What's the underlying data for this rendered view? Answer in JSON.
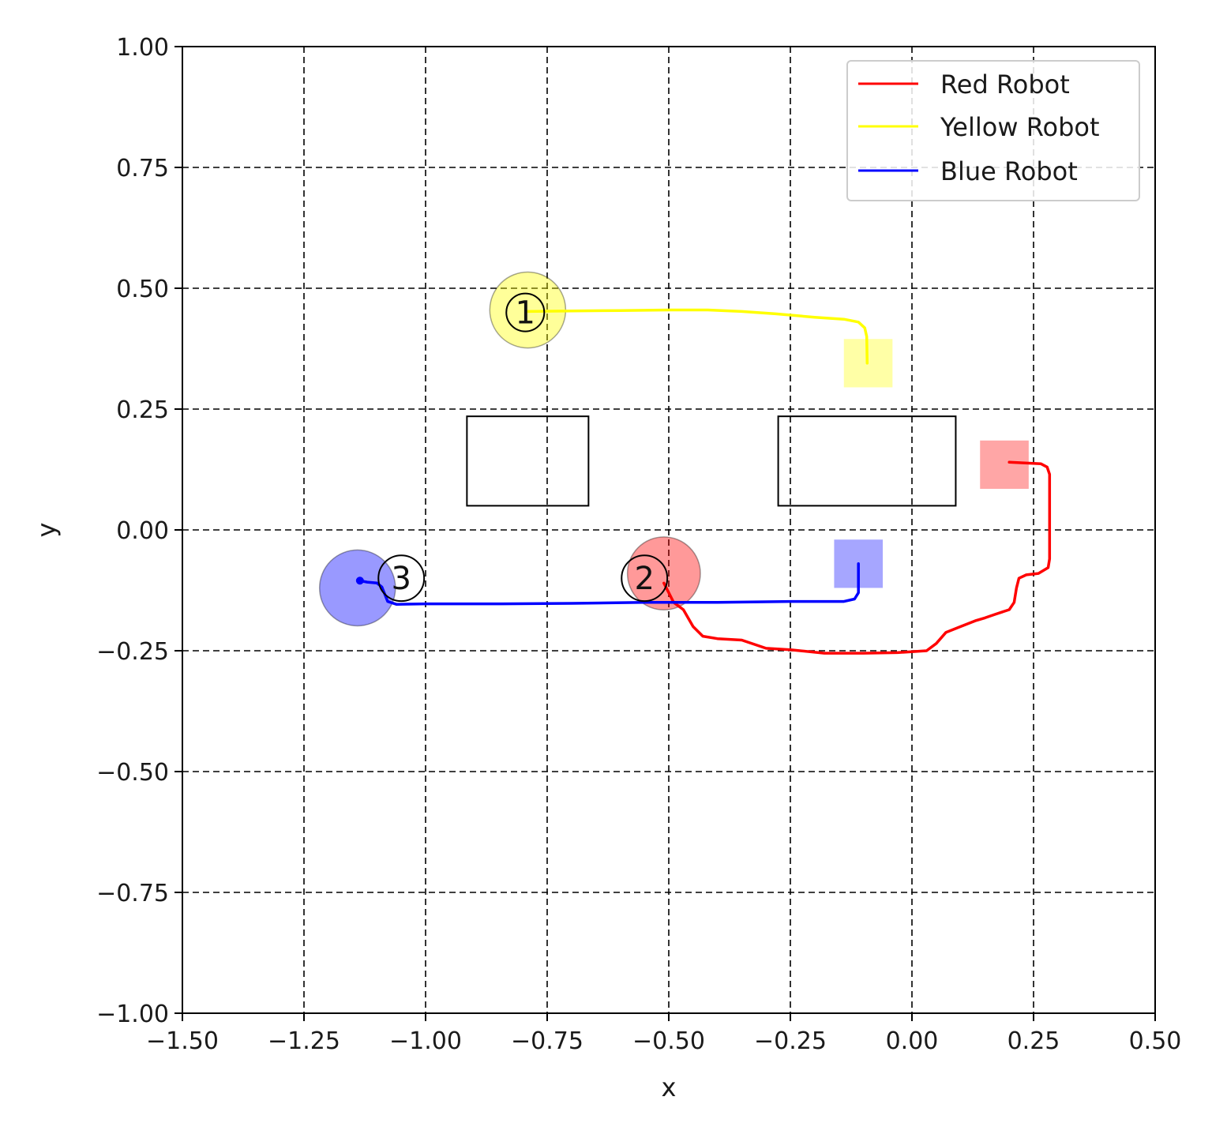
{
  "chart_data": {
    "type": "line",
    "title": "",
    "xlabel": "x",
    "ylabel": "y",
    "xlim": [
      -1.5,
      0.5
    ],
    "ylim": [
      -1.0,
      1.0
    ],
    "xticks": [
      -1.5,
      -1.25,
      -1.0,
      -0.75,
      -0.5,
      -0.25,
      0.0,
      0.25,
      0.5
    ],
    "yticks": [
      -1.0,
      -0.75,
      -0.5,
      -0.25,
      0.0,
      0.25,
      0.5,
      0.75,
      1.0
    ],
    "xtick_labels": [
      "−1.50",
      "−1.25",
      "−1.00",
      "−0.75",
      "−0.50",
      "−0.25",
      "0.00",
      "0.25",
      "0.50"
    ],
    "ytick_labels": [
      "−1.00",
      "−0.75",
      "−0.50",
      "−0.25",
      "0.00",
      "0.25",
      "0.50",
      "0.75",
      "1.00"
    ],
    "grid": true,
    "grid_style": "dashed",
    "legend_position": "top-right",
    "series": [
      {
        "name": "Red Robot",
        "color": "#ff0000",
        "start_marker": {
          "shape": "circle",
          "x": -0.51,
          "y": -0.09,
          "r": 0.075
        },
        "goal_marker": {
          "shape": "square",
          "x": 0.19,
          "y": 0.135,
          "size": 0.1
        },
        "points": [
          [
            -0.51,
            -0.11
          ],
          [
            -0.49,
            -0.15
          ],
          [
            -0.47,
            -0.165
          ],
          [
            -0.45,
            -0.2
          ],
          [
            -0.43,
            -0.22
          ],
          [
            -0.4,
            -0.225
          ],
          [
            -0.35,
            -0.228
          ],
          [
            -0.3,
            -0.245
          ],
          [
            -0.25,
            -0.248
          ],
          [
            -0.18,
            -0.255
          ],
          [
            -0.1,
            -0.255
          ],
          [
            -0.03,
            -0.254
          ],
          [
            0.03,
            -0.25
          ],
          [
            0.05,
            -0.235
          ],
          [
            0.07,
            -0.212
          ],
          [
            0.1,
            -0.2
          ],
          [
            0.13,
            -0.188
          ],
          [
            0.15,
            -0.182
          ],
          [
            0.17,
            -0.175
          ],
          [
            0.2,
            -0.165
          ],
          [
            0.21,
            -0.15
          ],
          [
            0.215,
            -0.12
          ],
          [
            0.22,
            -0.1
          ],
          [
            0.235,
            -0.093
          ],
          [
            0.26,
            -0.09
          ],
          [
            0.28,
            -0.078
          ],
          [
            0.283,
            -0.06
          ],
          [
            0.283,
            0.05
          ],
          [
            0.283,
            0.115
          ],
          [
            0.278,
            0.13
          ],
          [
            0.265,
            0.137
          ],
          [
            0.2,
            0.14
          ]
        ]
      },
      {
        "name": "Yellow Robot",
        "color": "#ffff00",
        "start_marker": {
          "shape": "circle",
          "x": -0.79,
          "y": 0.455,
          "r": 0.078
        },
        "goal_marker": {
          "shape": "square",
          "x": -0.09,
          "y": 0.345,
          "size": 0.1
        },
        "points": [
          [
            -0.79,
            0.452
          ],
          [
            -0.7,
            0.453
          ],
          [
            -0.6,
            0.454
          ],
          [
            -0.5,
            0.455
          ],
          [
            -0.42,
            0.455
          ],
          [
            -0.35,
            0.452
          ],
          [
            -0.28,
            0.447
          ],
          [
            -0.2,
            0.44
          ],
          [
            -0.14,
            0.436
          ],
          [
            -0.11,
            0.43
          ],
          [
            -0.097,
            0.418
          ],
          [
            -0.093,
            0.4
          ],
          [
            -0.092,
            0.345
          ]
        ]
      },
      {
        "name": "Blue Robot",
        "color": "#0000ff",
        "start_marker": {
          "shape": "circle",
          "x": -1.14,
          "y": -0.12,
          "r": 0.078
        },
        "goal_marker": {
          "shape": "square",
          "x": -0.11,
          "y": -0.07,
          "size": 0.1
        },
        "points": [
          [
            -0.11,
            -0.07
          ],
          [
            -0.11,
            -0.13
          ],
          [
            -0.118,
            -0.143
          ],
          [
            -0.14,
            -0.148
          ],
          [
            -0.25,
            -0.148
          ],
          [
            -0.4,
            -0.15
          ],
          [
            -0.55,
            -0.15
          ],
          [
            -0.7,
            -0.152
          ],
          [
            -0.85,
            -0.153
          ],
          [
            -1.0,
            -0.153
          ],
          [
            -1.06,
            -0.154
          ],
          [
            -1.078,
            -0.148
          ],
          [
            -1.085,
            -0.13
          ],
          [
            -1.09,
            -0.118
          ],
          [
            -1.1,
            -0.11
          ],
          [
            -1.12,
            -0.108
          ],
          [
            -1.135,
            -0.105
          ]
        ]
      }
    ],
    "robot_markers": [
      {
        "label": "1",
        "x": -0.795,
        "y": 0.45,
        "r": 0.039
      },
      {
        "label": "2",
        "x": -0.55,
        "y": -0.1,
        "r": 0.047
      },
      {
        "label": "3",
        "x": -1.05,
        "y": -0.1,
        "r": 0.047
      }
    ],
    "obstacles": [
      {
        "x0": -0.915,
        "y0": 0.05,
        "x1": -0.665,
        "y1": 0.235
      },
      {
        "x0": -0.275,
        "y0": 0.05,
        "x1": 0.09,
        "y1": 0.235
      }
    ]
  }
}
